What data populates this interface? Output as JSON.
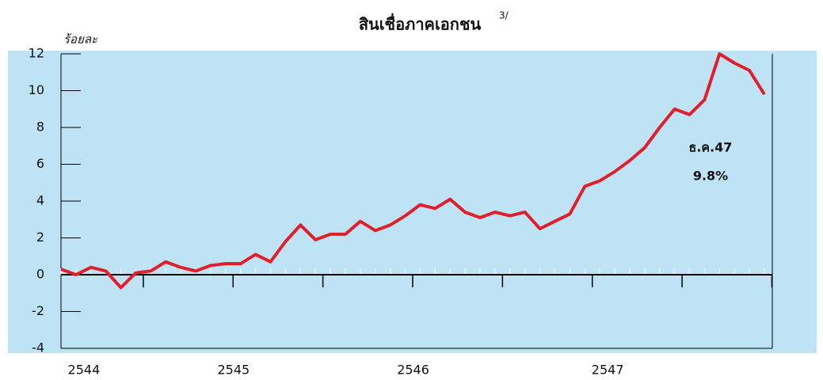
{
  "chart_data": {
    "type": "line",
    "title": "สินเชื่อภาคเอกชน",
    "title_note": "3/",
    "y_label": "ร้อยละ",
    "annotations": [
      "ธ.ค.47",
      "9.8%"
    ],
    "categories": [
      null,
      "2544",
      null,
      null,
      null,
      null,
      null,
      null,
      null,
      null,
      null,
      "2545",
      null,
      null,
      null,
      null,
      null,
      null,
      null,
      null,
      null,
      null,
      null,
      "2546",
      null,
      null,
      null,
      null,
      null,
      null,
      null,
      null,
      null,
      null,
      null,
      null,
      "2547",
      null,
      null,
      null,
      null,
      null,
      null,
      null,
      null,
      null,
      null,
      null
    ],
    "series": [
      {
        "name": "สินเชื่อภาคเอกชน",
        "color": "#e31e2b",
        "values": [
          0.3,
          0.0,
          0.4,
          0.2,
          -0.7,
          0.1,
          0.2,
          0.7,
          0.4,
          0.2,
          0.5,
          0.6,
          0.6,
          1.1,
          0.7,
          1.8,
          2.7,
          1.9,
          2.2,
          2.2,
          2.9,
          2.4,
          2.7,
          3.2,
          3.8,
          3.6,
          4.1,
          3.4,
          3.1,
          3.4,
          3.2,
          3.4,
          2.5,
          2.9,
          3.3,
          4.8,
          5.1,
          5.6,
          6.2,
          6.9,
          8.0,
          9.0,
          8.7,
          9.5,
          12.0,
          11.5,
          11.1,
          9.8
        ]
      }
    ],
    "ylim": [
      -4,
      12
    ],
    "yticks": [
      -4,
      -2,
      0,
      2,
      4,
      6,
      8,
      10,
      12
    ],
    "background": "#bde3f5"
  }
}
